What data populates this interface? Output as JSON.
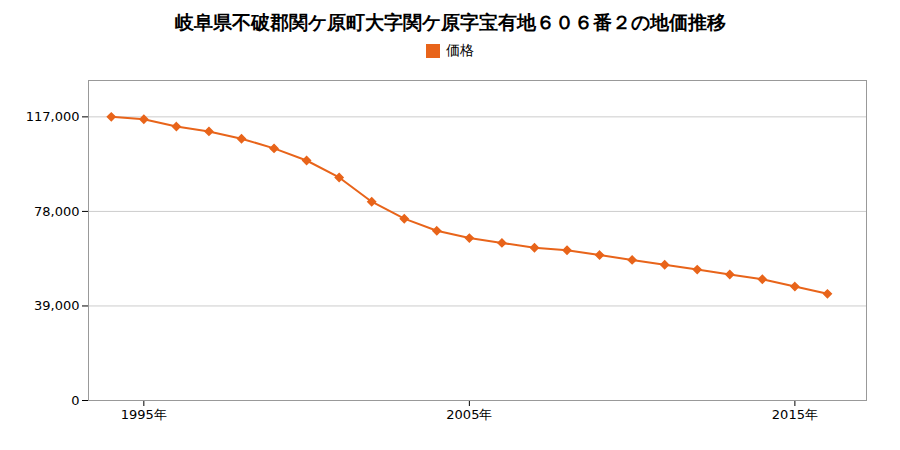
{
  "chart_data": {
    "type": "line",
    "title": "岐阜県不破郡関ケ原町大字関ケ原字宝有地６０６番２の地価推移",
    "x": [
      1994,
      1995,
      1996,
      1997,
      1998,
      1999,
      2000,
      2001,
      2002,
      2003,
      2004,
      2005,
      2006,
      2007,
      2008,
      2009,
      2010,
      2011,
      2012,
      2013,
      2014,
      2015,
      2016
    ],
    "series": [
      {
        "name": "価格",
        "color": "#e8641a",
        "marker": "diamond",
        "values": [
          117000,
          116000,
          113000,
          111000,
          108000,
          104000,
          99000,
          92000,
          82000,
          75000,
          70000,
          67000,
          65000,
          63000,
          62000,
          60000,
          58000,
          56000,
          54000,
          52000,
          50000,
          47000,
          44000
        ]
      }
    ],
    "xlim": [
      1993.3,
      2017.2
    ],
    "xticks": [
      {
        "value": 1995,
        "label": "1995年"
      },
      {
        "value": 2005,
        "label": "2005年"
      },
      {
        "value": 2015,
        "label": "2015年"
      }
    ],
    "ylim": [
      0,
      132000
    ],
    "yticks": [
      0,
      {
        "value": 39000,
        "label": "39,000"
      },
      {
        "value": 78000,
        "label": "78,000"
      },
      {
        "value": 117000,
        "label": "117,000"
      }
    ],
    "grid": "y",
    "legend": "top"
  }
}
